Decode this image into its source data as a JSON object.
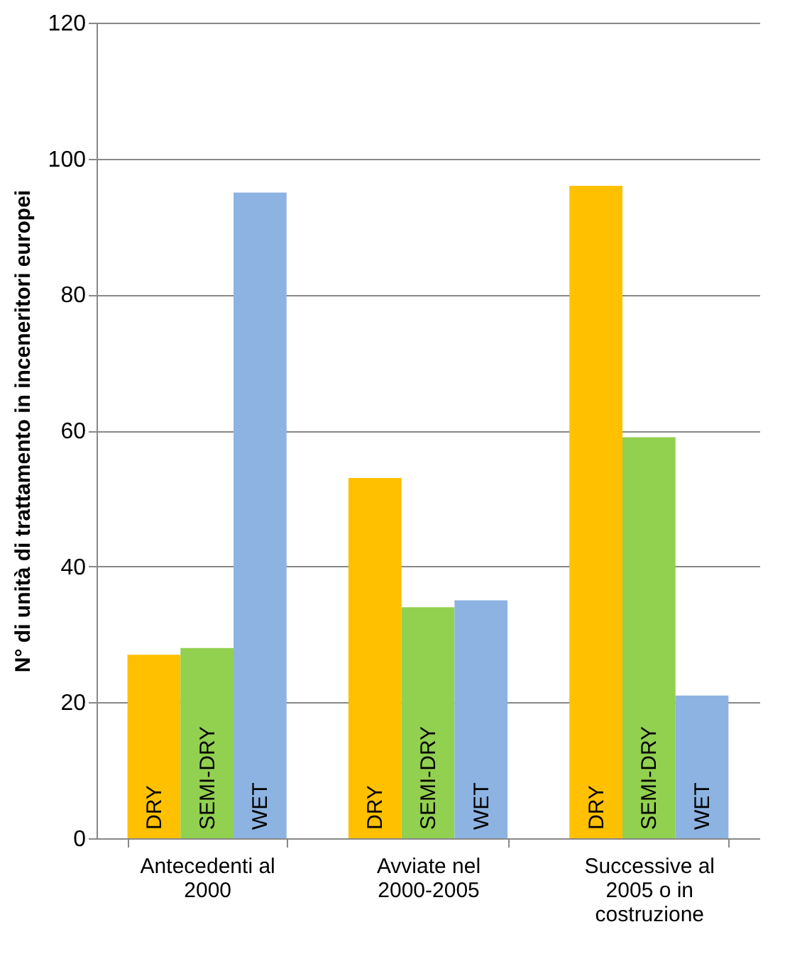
{
  "chart_data": {
    "type": "bar",
    "ylabel": "N° di unità di trattamento in inceneritori europei",
    "categories": [
      "Antecedenti al 2000",
      "Avviate nel 2000-2005",
      "Successive al 2005 o in costruzione"
    ],
    "series": [
      {
        "name": "DRY",
        "color": "#ffc000",
        "values": [
          27,
          53,
          96
        ]
      },
      {
        "name": "SEMI-DRY",
        "color": "#92d050",
        "values": [
          28,
          34,
          59
        ]
      },
      {
        "name": "WET",
        "color": "#8db3e2",
        "values": [
          95,
          35,
          21
        ]
      }
    ],
    "ylim": [
      0,
      120
    ],
    "yticks": [
      0,
      20,
      40,
      60,
      80,
      100,
      120
    ],
    "grid": "y",
    "legend": false
  }
}
